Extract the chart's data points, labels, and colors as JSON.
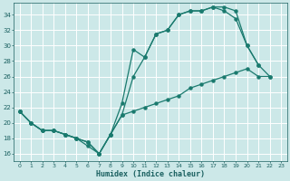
{
  "title": "",
  "xlabel": "Humidex (Indice chaleur)",
  "background_color": "#cce8e8",
  "grid_color": "#ffffff",
  "line_color": "#1a7a6e",
  "xlim": [
    -0.5,
    23.5
  ],
  "ylim": [
    15,
    35.5
  ],
  "xticks": [
    0,
    1,
    2,
    3,
    4,
    5,
    6,
    7,
    8,
    9,
    10,
    11,
    12,
    13,
    14,
    15,
    16,
    17,
    18,
    19,
    20,
    21,
    22,
    23
  ],
  "yticks": [
    16,
    18,
    20,
    22,
    24,
    26,
    28,
    30,
    32,
    34
  ],
  "line1_x": [
    0,
    1,
    2,
    3,
    4,
    5,
    6,
    7,
    8,
    9,
    10,
    11,
    12,
    13,
    14,
    15,
    16,
    17,
    18,
    19,
    20,
    21
  ],
  "line1_y": [
    21.5,
    20.0,
    19.0,
    19.0,
    18.5,
    18.0,
    17.0,
    16.0,
    18.5,
    22.5,
    29.5,
    28.5,
    31.5,
    32.0,
    34.0,
    34.5,
    34.5,
    35.0,
    35.0,
    34.5,
    30.0,
    27.5
  ],
  "line2_x": [
    0,
    1,
    2,
    3,
    4,
    5,
    6,
    7,
    8,
    9,
    10,
    11,
    12,
    13,
    14,
    15,
    16,
    17,
    18,
    19,
    20,
    21,
    22
  ],
  "line2_y": [
    21.5,
    20.0,
    19.0,
    19.0,
    18.5,
    18.0,
    17.5,
    16.0,
    18.5,
    21.0,
    26.0,
    28.5,
    31.5,
    32.0,
    34.0,
    34.5,
    34.5,
    35.0,
    34.5,
    33.5,
    30.0,
    27.5,
    26.0
  ],
  "line3_x": [
    0,
    1,
    2,
    3,
    4,
    5,
    6,
    7,
    8,
    9,
    10,
    11,
    12,
    13,
    14,
    15,
    16,
    17,
    18,
    19,
    20,
    21,
    22
  ],
  "line3_y": [
    21.5,
    20.0,
    19.0,
    19.0,
    18.5,
    18.0,
    17.5,
    16.0,
    18.5,
    21.0,
    21.5,
    22.0,
    22.5,
    23.0,
    23.5,
    24.5,
    25.0,
    25.5,
    26.0,
    26.5,
    27.0,
    26.0,
    26.0
  ]
}
